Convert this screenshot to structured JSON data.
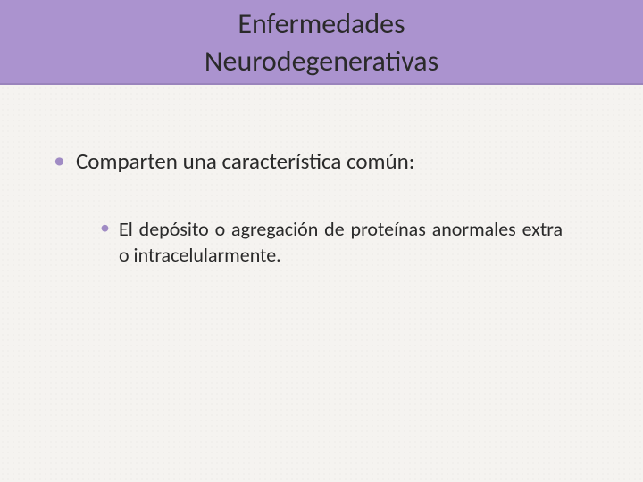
{
  "title": {
    "line1": "Enfermedades",
    "line2": "Neurodegenerativas",
    "fontsize": 32,
    "color": "#2a2a2a",
    "band_color": "#ab93cf"
  },
  "body": {
    "bullet_color": "#a08bc4",
    "text_color": "#2a2a2a",
    "level1_fontsize": 25,
    "level2_fontsize": 22,
    "items": [
      {
        "text": "Comparten una característica común:",
        "children": [
          {
            "text": "El depósito o agregación de proteínas anormales extra o intracelularmente."
          }
        ]
      }
    ]
  },
  "background_color": "#f5f3f0"
}
